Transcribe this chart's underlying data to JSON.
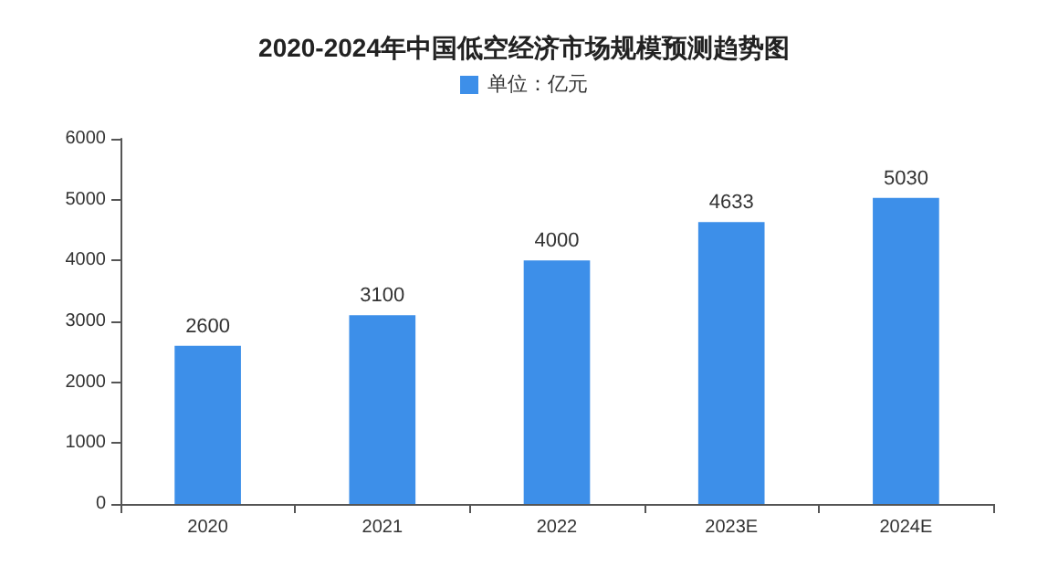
{
  "chart_data": {
    "type": "bar",
    "title": "2020-2024年中国低空经济市场规模预测趋势图",
    "categories": [
      "2020",
      "2021",
      "2022",
      "2023E",
      "2024E"
    ],
    "series": [
      {
        "name": "单位：亿元",
        "color": "#3d8fe9",
        "values": [
          2600,
          3100,
          4000,
          4633,
          5030
        ]
      }
    ],
    "ylim": [
      0,
      6000
    ],
    "yticks": [
      0,
      1000,
      2000,
      3000,
      4000,
      5000,
      6000
    ],
    "grid": false,
    "legend": "top",
    "data_labels": true
  }
}
